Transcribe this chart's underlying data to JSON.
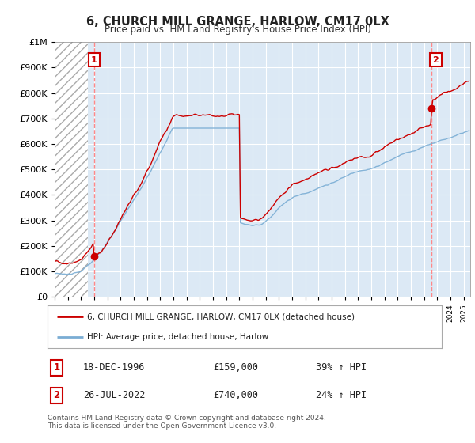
{
  "title": "6, CHURCH MILL GRANGE, HARLOW, CM17 0LX",
  "subtitle": "Price paid vs. HM Land Registry's House Price Index (HPI)",
  "title_fontsize": 11,
  "subtitle_fontsize": 9,
  "background_color": "#ffffff",
  "plot_bg_color": "#dce9f5",
  "grid_color": "#ffffff",
  "red_color": "#cc0000",
  "blue_color": "#7aadd4",
  "purchase1_year": 1996.96,
  "purchase1_price": 159000,
  "purchase2_year": 2022.56,
  "purchase2_price": 740000,
  "purchase1_label": "18-DEC-1996",
  "purchase1_price_str": "£159,000",
  "purchase1_hpi_str": "39% ↑ HPI",
  "purchase2_label": "26-JUL-2022",
  "purchase2_price_str": "£740,000",
  "purchase2_hpi_str": "24% ↑ HPI",
  "legend_line1": "6, CHURCH MILL GRANGE, HARLOW, CM17 0LX (detached house)",
  "legend_line2": "HPI: Average price, detached house, Harlow",
  "footer": "Contains HM Land Registry data © Crown copyright and database right 2024.\nThis data is licensed under the Open Government Licence v3.0.",
  "ylim": [
    0,
    1000000
  ],
  "xmin": 1994,
  "xmax": 2025.5
}
